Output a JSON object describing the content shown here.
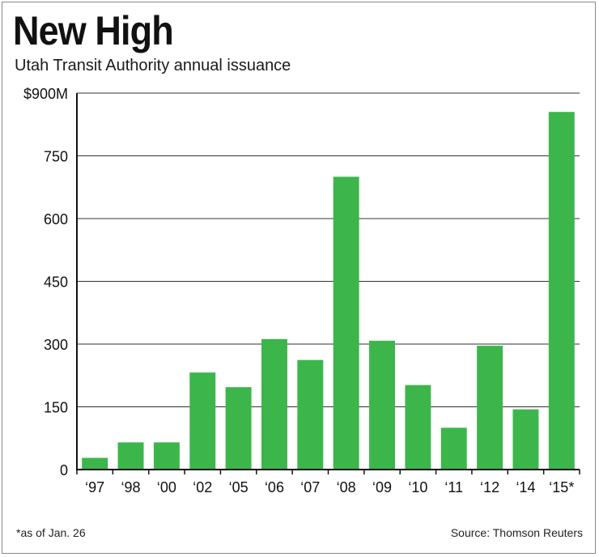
{
  "header": {
    "title": "New High",
    "subtitle": "Utah Transit Authority annual issuance"
  },
  "footer": {
    "footnote": "*as of Jan. 26",
    "source": "Source: Thomson Reuters"
  },
  "colors": {
    "bar": "#3cb64b",
    "grid": "#333333",
    "axis": "#111111"
  },
  "chart_data": {
    "type": "bar",
    "title": "New High",
    "subtitle": "Utah Transit Authority annual issuance",
    "xlabel": "",
    "ylabel": "",
    "categories": [
      "‘97",
      "‘98",
      "‘00",
      "‘02",
      "‘05",
      "‘06",
      "‘07",
      "‘08",
      "‘09",
      "‘10",
      "‘11",
      "‘12",
      "‘14",
      "‘15*"
    ],
    "values": [
      28,
      65,
      65,
      232,
      197,
      312,
      262,
      700,
      308,
      202,
      100,
      296,
      144,
      855
    ],
    "ylim": [
      0,
      900
    ],
    "yticks": [
      0,
      150,
      300,
      450,
      600,
      750,
      900
    ],
    "ytick_labels": [
      "0",
      "150",
      "300",
      "450",
      "600",
      "750",
      "$900M"
    ],
    "grid": true,
    "legend": "none"
  }
}
